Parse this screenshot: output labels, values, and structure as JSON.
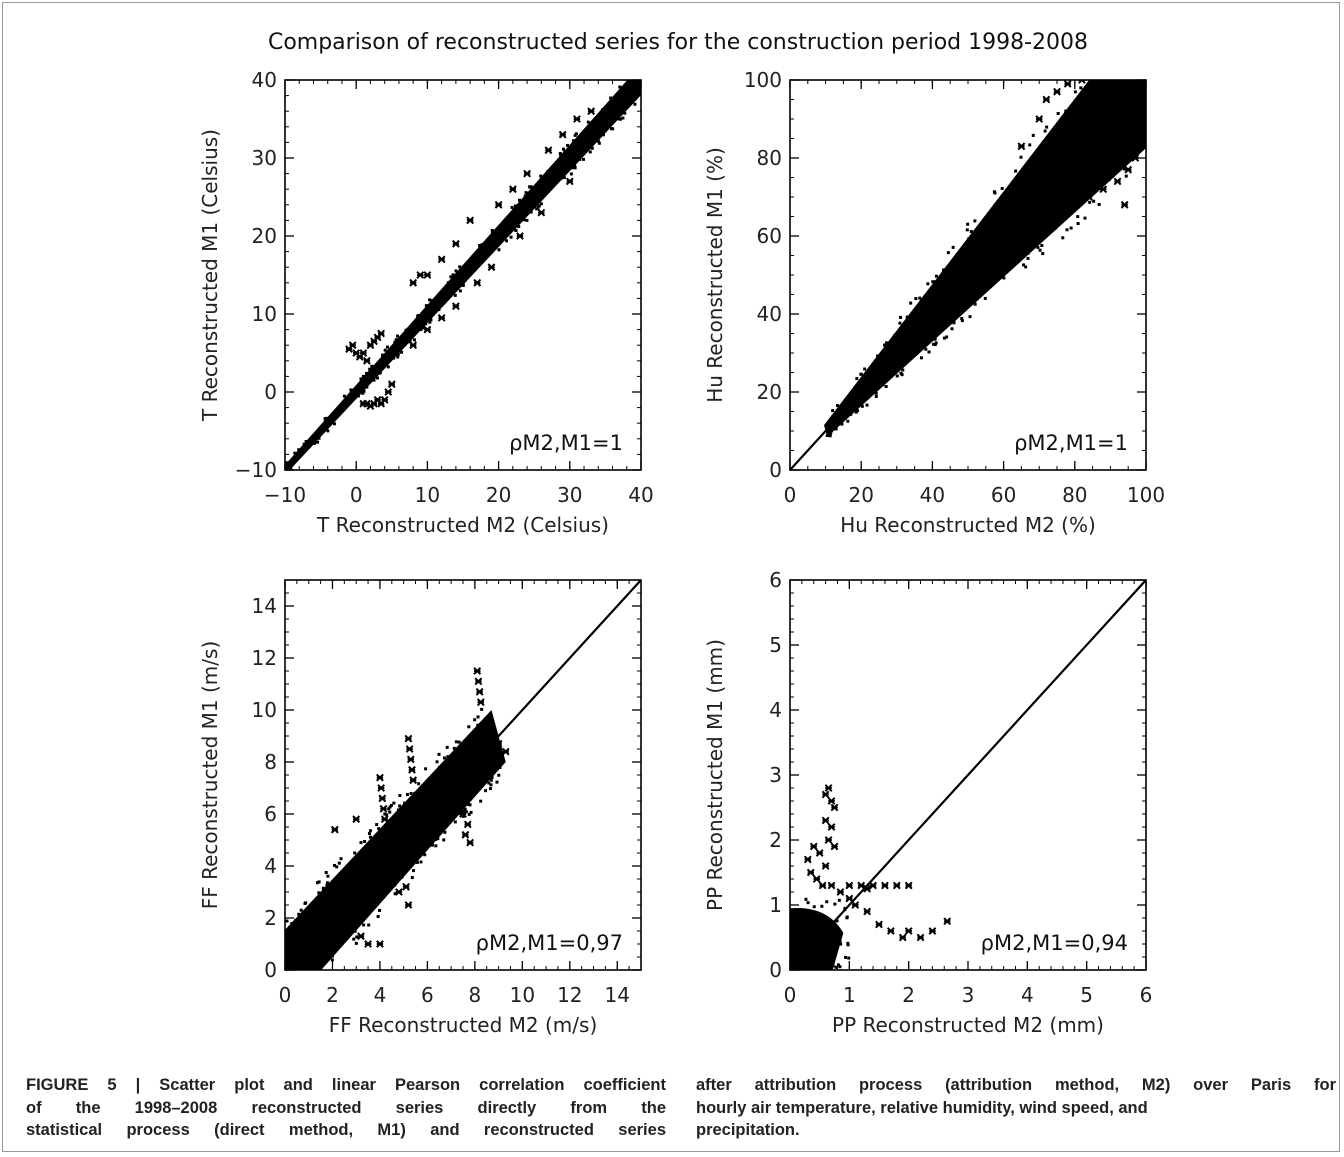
{
  "figure": {
    "title": "Comparison of reconstructed series for the construction period 1998-2008"
  },
  "colors": {
    "points": "#000000",
    "axes": "#000000",
    "text": "#222222",
    "frame": "#999999"
  },
  "chart_data": [
    {
      "type": "scatter",
      "xlabel": "T Reconstructed M2 (Celsius)",
      "ylabel": "T Reconstructed M1 (Celsius)",
      "xlim": [
        -10,
        40
      ],
      "ylim": [
        -10,
        40
      ],
      "xticks": [
        -10,
        0,
        10,
        20,
        30,
        40
      ],
      "yticks": [
        -10,
        0,
        10,
        20,
        30,
        40
      ],
      "xtick_labels": [
        "−10",
        "0",
        "10",
        "20",
        "30",
        "40"
      ],
      "ytick_labels": [
        "−10",
        "0",
        "10",
        "20",
        "30",
        "40"
      ],
      "minor_step": 2,
      "annotation": "ρM2,M1=1",
      "identity_line": true,
      "band": {
        "from": -10,
        "to": 40,
        "half_width": [
          0.5,
          1.5
        ]
      },
      "outliers": [
        {
          "x": -1,
          "y": 5.5
        },
        {
          "x": -0.5,
          "y": 6
        },
        {
          "x": 0,
          "y": 5
        },
        {
          "x": 0.5,
          "y": 4.5
        },
        {
          "x": 1,
          "y": 5
        },
        {
          "x": 1.5,
          "y": 4
        },
        {
          "x": 2,
          "y": 6
        },
        {
          "x": 2.5,
          "y": 6.5
        },
        {
          "x": 3,
          "y": 7
        },
        {
          "x": 3.5,
          "y": 7.5
        },
        {
          "x": 1,
          "y": -1.5
        },
        {
          "x": 1.5,
          "y": -1.5
        },
        {
          "x": 2,
          "y": -1.8
        },
        {
          "x": 2.5,
          "y": -1.5
        },
        {
          "x": 3,
          "y": -1
        },
        {
          "x": 3.5,
          "y": -1.5
        },
        {
          "x": 4,
          "y": -1
        },
        {
          "x": 4.5,
          "y": 0
        },
        {
          "x": 5,
          "y": 1
        },
        {
          "x": 8,
          "y": 14
        },
        {
          "x": 9,
          "y": 15
        },
        {
          "x": 10,
          "y": 15
        },
        {
          "x": 12,
          "y": 17
        },
        {
          "x": 14,
          "y": 19
        },
        {
          "x": 16,
          "y": 22
        },
        {
          "x": 20,
          "y": 24
        },
        {
          "x": 22,
          "y": 26
        },
        {
          "x": 24,
          "y": 28
        },
        {
          "x": 27,
          "y": 31
        },
        {
          "x": 29,
          "y": 33
        },
        {
          "x": 31,
          "y": 35
        },
        {
          "x": 33,
          "y": 36
        },
        {
          "x": 8,
          "y": 6
        },
        {
          "x": 10,
          "y": 8
        },
        {
          "x": 12,
          "y": 9.5
        },
        {
          "x": 14,
          "y": 11
        },
        {
          "x": 17,
          "y": 14
        },
        {
          "x": 19,
          "y": 16
        },
        {
          "x": 23,
          "y": 20
        },
        {
          "x": 26,
          "y": 23
        },
        {
          "x": 30,
          "y": 27
        }
      ]
    },
    {
      "type": "scatter",
      "xlabel": "Hu Reconstructed M2 (%)",
      "ylabel": "Hu Reconstructed M1 (%)",
      "xlim": [
        0,
        100
      ],
      "ylim": [
        0,
        100
      ],
      "xticks": [
        0,
        20,
        40,
        60,
        80,
        100
      ],
      "yticks": [
        0,
        20,
        40,
        60,
        80,
        100
      ],
      "xtick_labels": [
        "0",
        "20",
        "40",
        "60",
        "80",
        "100"
      ],
      "ytick_labels": [
        "0",
        "20",
        "40",
        "60",
        "80",
        "100"
      ],
      "minor_step": 5,
      "annotation": "ρM2,M1=1",
      "identity_line": true,
      "band": {
        "from": 10,
        "to": 100,
        "half_width": [
          1.5,
          14
        ]
      },
      "outliers": [
        {
          "x": 65,
          "y": 83
        },
        {
          "x": 70,
          "y": 90
        },
        {
          "x": 72,
          "y": 95
        },
        {
          "x": 75,
          "y": 97
        },
        {
          "x": 78,
          "y": 99
        },
        {
          "x": 82,
          "y": 100
        },
        {
          "x": 85,
          "y": 100
        },
        {
          "x": 80,
          "y": 68
        },
        {
          "x": 84,
          "y": 70
        },
        {
          "x": 88,
          "y": 72
        },
        {
          "x": 92,
          "y": 74
        },
        {
          "x": 94,
          "y": 68
        },
        {
          "x": 95,
          "y": 77
        },
        {
          "x": 97,
          "y": 80
        },
        {
          "x": 98,
          "y": 83
        }
      ]
    },
    {
      "type": "scatter",
      "xlabel": "FF Reconstructed M2 (m/s)",
      "ylabel": "FF Reconstructed M1 (m/s)",
      "xlim": [
        0,
        15
      ],
      "ylim": [
        0,
        15
      ],
      "xticks": [
        0,
        2,
        4,
        6,
        8,
        10,
        12,
        14
      ],
      "yticks": [
        0,
        2,
        4,
        6,
        8,
        10,
        12,
        14
      ],
      "xtick_labels": [
        "0",
        "2",
        "4",
        "6",
        "8",
        "10",
        "12",
        "14"
      ],
      "ytick_labels": [
        "0",
        "2",
        "4",
        "6",
        "8",
        "10",
        "12",
        "14"
      ],
      "minor_step": 0.5,
      "annotation": "ρM2,M1=0,97",
      "identity_line": true,
      "band": {
        "from": 0,
        "to": 9,
        "half_width": [
          1.2,
          1.0
        ]
      },
      "outliers": [
        {
          "x": 4.0,
          "y": 7.4
        },
        {
          "x": 4.05,
          "y": 7.0
        },
        {
          "x": 4.1,
          "y": 6.6
        },
        {
          "x": 4.15,
          "y": 6.2
        },
        {
          "x": 4.2,
          "y": 5.8
        },
        {
          "x": 5.2,
          "y": 8.9
        },
        {
          "x": 5.25,
          "y": 8.5
        },
        {
          "x": 5.3,
          "y": 8.1
        },
        {
          "x": 5.35,
          "y": 7.7
        },
        {
          "x": 5.4,
          "y": 7.3
        },
        {
          "x": 8.1,
          "y": 11.5
        },
        {
          "x": 8.15,
          "y": 11.1
        },
        {
          "x": 8.2,
          "y": 10.7
        },
        {
          "x": 8.25,
          "y": 10.3
        },
        {
          "x": 5.0,
          "y": 4.0
        },
        {
          "x": 5.1,
          "y": 3.2
        },
        {
          "x": 5.2,
          "y": 2.5
        },
        {
          "x": 4.0,
          "y": 1.0
        },
        {
          "x": 3.5,
          "y": 1.0
        },
        {
          "x": 3.2,
          "y": 1.3
        },
        {
          "x": 4.8,
          "y": 3.0
        },
        {
          "x": 7.6,
          "y": 5.2
        },
        {
          "x": 7.7,
          "y": 5.6
        },
        {
          "x": 7.5,
          "y": 6.0
        },
        {
          "x": 7.8,
          "y": 4.9
        },
        {
          "x": 9.3,
          "y": 8.4
        },
        {
          "x": 9.0,
          "y": 8.7
        },
        {
          "x": 8.5,
          "y": 9.0
        },
        {
          "x": 2.1,
          "y": 5.4
        },
        {
          "x": 3.0,
          "y": 5.8
        }
      ]
    },
    {
      "type": "scatter",
      "xlabel": "PP Reconstructed M2 (mm)",
      "ylabel": "PP Reconstructed M1 (mm)",
      "xlim": [
        0,
        6
      ],
      "ylim": [
        0,
        6
      ],
      "xticks": [
        0,
        1,
        2,
        3,
        4,
        5,
        6
      ],
      "yticks": [
        0,
        1,
        2,
        3,
        4,
        5,
        6
      ],
      "xtick_labels": [
        "0",
        "1",
        "2",
        "3",
        "4",
        "5",
        "6"
      ],
      "ytick_labels": [
        "0",
        "1",
        "2",
        "3",
        "4",
        "5",
        "6"
      ],
      "minor_step": 0.2,
      "annotation": "ρM2,M1=0,94",
      "identity_line": true,
      "cluster": {
        "x_max": 0.9,
        "y_max": 0.95
      },
      "outliers": [
        {
          "x": 0.6,
          "y": 2.7
        },
        {
          "x": 0.65,
          "y": 2.8
        },
        {
          "x": 0.7,
          "y": 2.6
        },
        {
          "x": 0.75,
          "y": 2.5
        },
        {
          "x": 0.6,
          "y": 2.3
        },
        {
          "x": 0.7,
          "y": 2.2
        },
        {
          "x": 0.65,
          "y": 2.0
        },
        {
          "x": 0.75,
          "y": 1.9
        },
        {
          "x": 0.3,
          "y": 1.7
        },
        {
          "x": 0.4,
          "y": 1.9
        },
        {
          "x": 0.5,
          "y": 1.8
        },
        {
          "x": 0.6,
          "y": 1.6
        },
        {
          "x": 0.35,
          "y": 1.5
        },
        {
          "x": 0.45,
          "y": 1.4
        },
        {
          "x": 0.55,
          "y": 1.3
        },
        {
          "x": 0.7,
          "y": 1.3
        },
        {
          "x": 0.85,
          "y": 1.2
        },
        {
          "x": 1.0,
          "y": 1.3
        },
        {
          "x": 1.2,
          "y": 1.3
        },
        {
          "x": 1.4,
          "y": 1.3
        },
        {
          "x": 1.6,
          "y": 1.3
        },
        {
          "x": 1.8,
          "y": 1.3
        },
        {
          "x": 2.0,
          "y": 1.3
        },
        {
          "x": 1.3,
          "y": 1.25
        },
        {
          "x": 1.0,
          "y": 1.1
        },
        {
          "x": 1.1,
          "y": 1.0
        },
        {
          "x": 1.3,
          "y": 0.9
        },
        {
          "x": 1.5,
          "y": 0.7
        },
        {
          "x": 1.7,
          "y": 0.6
        },
        {
          "x": 1.9,
          "y": 0.5
        },
        {
          "x": 2.0,
          "y": 0.6
        },
        {
          "x": 2.2,
          "y": 0.5
        },
        {
          "x": 2.4,
          "y": 0.6
        },
        {
          "x": 2.65,
          "y": 0.75
        }
      ]
    }
  ],
  "caption": {
    "col1": [
      "FIGURE 5 | Scatter plot and linear Pearson correlation coefficient",
      "of the 1998–2008 reconstructed series directly from the",
      "statistical process (direct method, M1) and reconstructed series"
    ],
    "col2": [
      "after attribution process (attribution method, M2) over Paris for",
      "hourly air temperature, relative humidity, wind speed, and",
      "precipitation."
    ]
  }
}
